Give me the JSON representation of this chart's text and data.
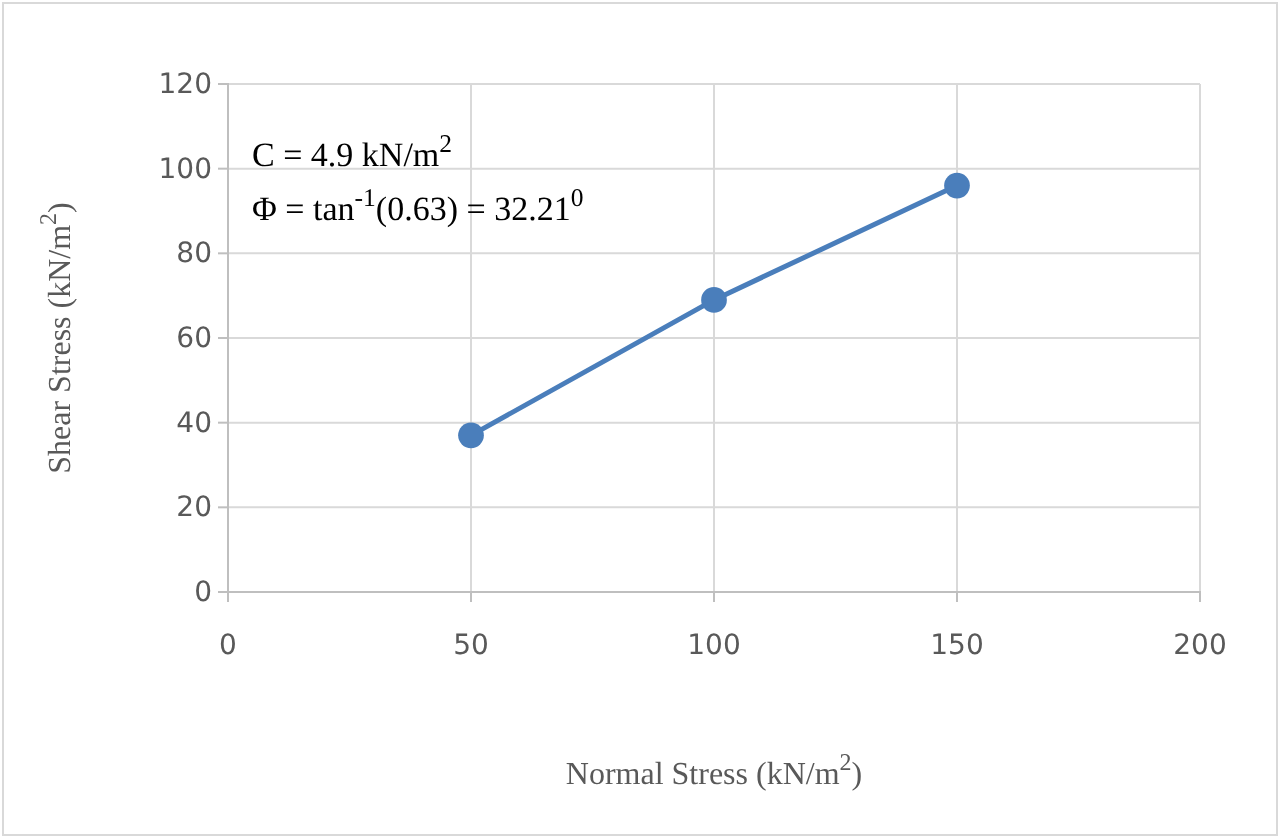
{
  "chart_data": {
    "type": "line",
    "xlabel": "Normal Stress (kN/m$^{2}$)",
    "ylabel": "Shear Stress (kN/m$^{2}$)",
    "x": [
      50,
      100,
      150
    ],
    "series": [
      {
        "color": "#4a7ebb",
        "values": [
          37,
          69,
          96
        ]
      }
    ],
    "xlim": [
      0,
      200
    ],
    "xticks": [
      0,
      50,
      100,
      150,
      200
    ],
    "ylim": [
      0,
      120
    ],
    "yticks": [
      0,
      20,
      40,
      60,
      80,
      100,
      120
    ],
    "grid": true,
    "marker": "circle",
    "line_style": "solid",
    "annotations": [
      "C = 4.9 kN/m$^{2}$",
      "Φ = tan$^{-1}$(0.63) = 32.21$^{0}$"
    ]
  }
}
